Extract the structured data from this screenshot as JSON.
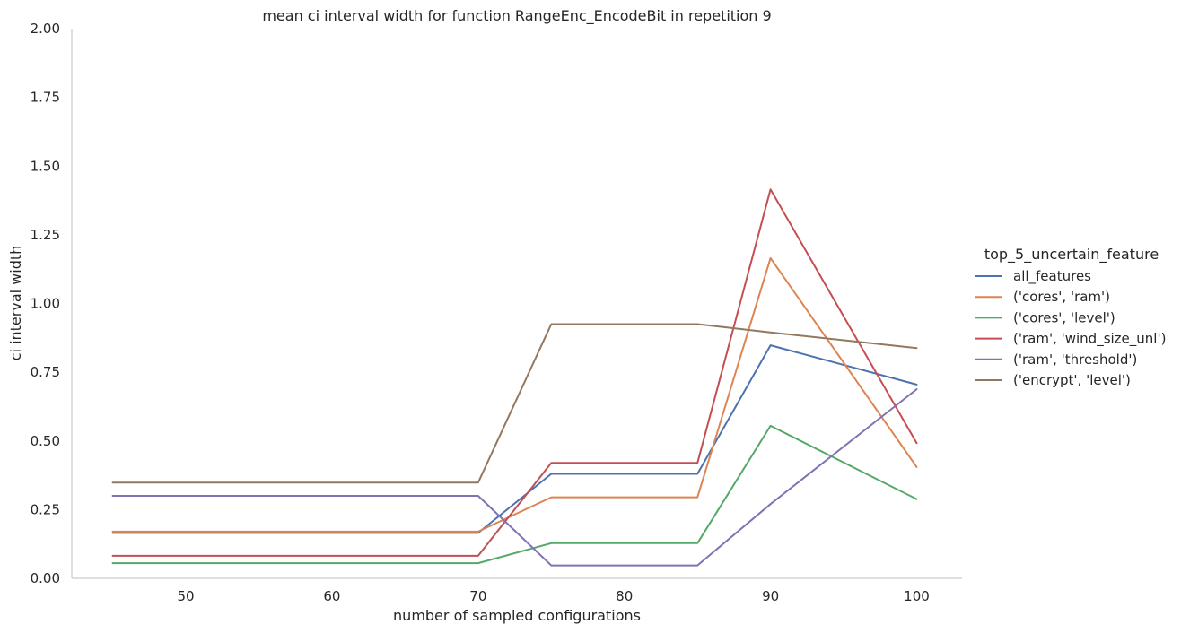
{
  "chart_data": {
    "type": "line",
    "title": "mean ci interval width for function RangeEnc_EncodeBit in repetition 9",
    "xlabel": "number of sampled configurations",
    "ylabel": "ci interval width",
    "xlim": [
      42.2,
      103.1
    ],
    "ylim": [
      0,
      2.0
    ],
    "xticks": [
      50,
      60,
      70,
      80,
      90,
      100
    ],
    "yticks": [
      0.0,
      0.25,
      0.5,
      0.75,
      1.0,
      1.25,
      1.5,
      1.75,
      2.0
    ],
    "ytick_labels": [
      "0.00",
      "0.25",
      "0.50",
      "0.75",
      "1.00",
      "1.25",
      "1.50",
      "1.75",
      "2.00"
    ],
    "grid": false,
    "legend": {
      "title": "top_5_uncertain_feature",
      "placement": "right"
    },
    "x": [
      45,
      70,
      75,
      85,
      90,
      100
    ],
    "series": [
      {
        "name": "all_features",
        "color": "#4c72b0",
        "values": [
          0.165,
          0.165,
          0.38,
          0.38,
          0.848,
          0.705
        ]
      },
      {
        "name": "('cores', 'ram')",
        "color": "#dd8452",
        "values": [
          0.17,
          0.17,
          0.295,
          0.295,
          1.165,
          0.405
        ]
      },
      {
        "name": "('cores', 'level')",
        "color": "#55a868",
        "values": [
          0.055,
          0.055,
          0.128,
          0.128,
          0.555,
          0.288
        ]
      },
      {
        "name": "('ram', 'wind_size_unl')",
        "color": "#c44e52",
        "values": [
          0.082,
          0.082,
          0.42,
          0.42,
          1.415,
          0.492
        ]
      },
      {
        "name": "('ram', 'threshold')",
        "color": "#8172b3",
        "values": [
          0.3,
          0.3,
          0.047,
          0.047,
          0.27,
          0.688
        ]
      },
      {
        "name": "('encrypt', 'level')",
        "color": "#937860",
        "values": [
          0.348,
          0.348,
          0.925,
          0.925,
          0.895,
          0.838
        ]
      }
    ]
  }
}
